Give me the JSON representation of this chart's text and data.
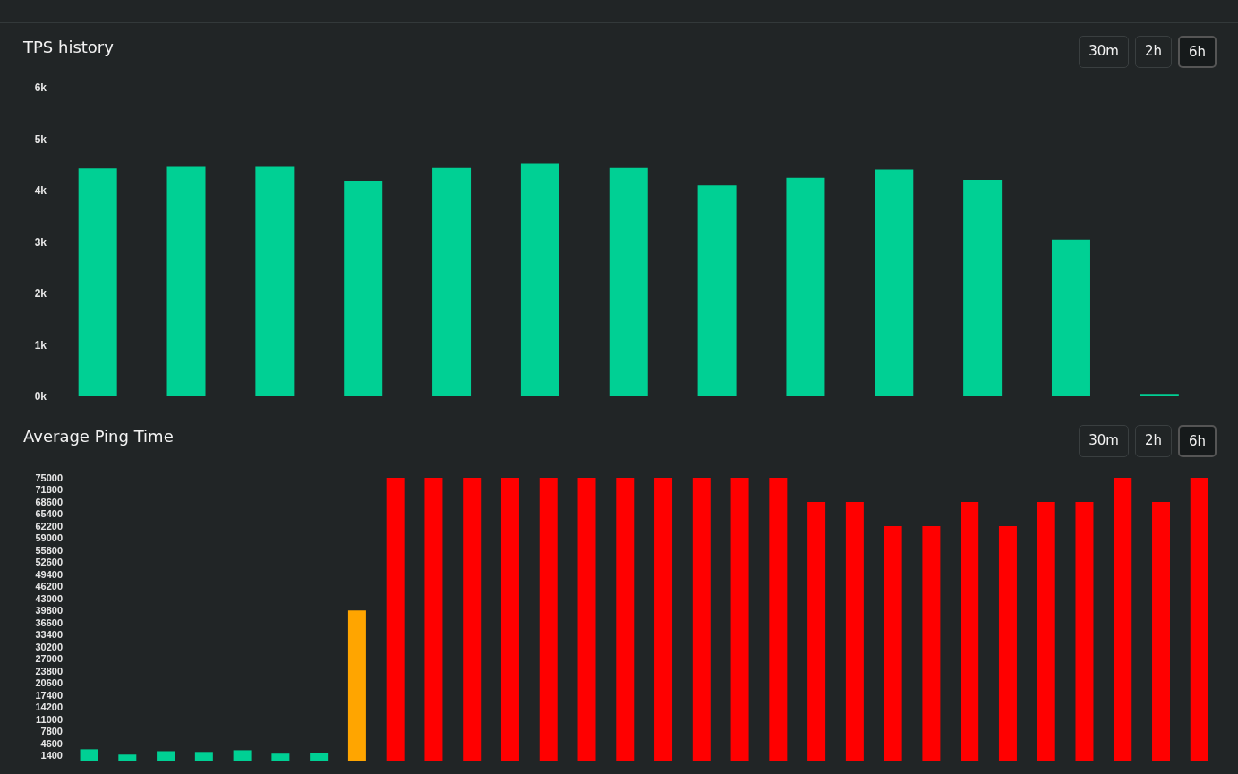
{
  "chart_data": [
    {
      "type": "bar",
      "title": "TPS history",
      "categories": [
        null,
        null,
        null,
        null,
        null,
        null,
        null,
        null,
        null,
        null,
        null,
        null,
        null
      ],
      "values": [
        4430,
        4460,
        4460,
        4190,
        4440,
        4530,
        4440,
        4100,
        4250,
        4410,
        4210,
        3050,
        50
      ],
      "color": "#00d094",
      "ylim": [
        0,
        6000
      ],
      "yticks": [
        {
          "value": 0,
          "label": "0k"
        },
        {
          "value": 1000,
          "label": "1k"
        },
        {
          "value": 2000,
          "label": "2k"
        },
        {
          "value": 3000,
          "label": "3k"
        },
        {
          "value": 4000,
          "label": "4k"
        },
        {
          "value": 5000,
          "label": "5k"
        },
        {
          "value": 6000,
          "label": "6k"
        }
      ],
      "tick_labels": "y",
      "annotations": [
        "30m",
        "2h",
        "6h"
      ]
    },
    {
      "type": "bar",
      "title": "Average Ping Time",
      "categories": [
        null,
        null,
        null,
        null,
        null,
        null,
        null,
        null,
        null,
        null,
        null,
        null,
        null,
        null,
        null,
        null,
        null,
        null,
        null,
        null,
        null,
        null,
        null,
        null,
        null,
        null,
        null,
        null,
        null,
        null
      ],
      "values": [
        3000,
        1600,
        2500,
        2300,
        2750,
        1850,
        2100,
        39800,
        75000,
        75000,
        75000,
        75000,
        75000,
        75000,
        75000,
        75000,
        75000,
        75000,
        75000,
        68600,
        68600,
        62200,
        62200,
        68600,
        62200,
        68600,
        68600,
        75000,
        68600,
        75000
      ],
      "colors": [
        "#00d094",
        "#00d094",
        "#00d094",
        "#00d094",
        "#00d094",
        "#00d094",
        "#00d094",
        "#ffa500",
        "#ff0000",
        "#ff0000",
        "#ff0000",
        "#ff0000",
        "#ff0000",
        "#ff0000",
        "#ff0000",
        "#ff0000",
        "#ff0000",
        "#ff0000",
        "#ff0000",
        "#ff0000",
        "#ff0000",
        "#ff0000",
        "#ff0000",
        "#ff0000",
        "#ff0000",
        "#ff0000",
        "#ff0000",
        "#ff0000",
        "#ff0000",
        "#ff0000"
      ],
      "ylim": [
        0,
        75000
      ],
      "yticks": [
        1400,
        4600,
        7800,
        11000,
        14200,
        17400,
        20600,
        23800,
        27000,
        30200,
        33400,
        36600,
        39800,
        43000,
        46200,
        49400,
        52600,
        55800,
        59000,
        62200,
        65400,
        68600,
        71800,
        75000
      ],
      "tick_labels": "y",
      "annotations": [
        "30m",
        "2h",
        "6h"
      ]
    }
  ]
}
